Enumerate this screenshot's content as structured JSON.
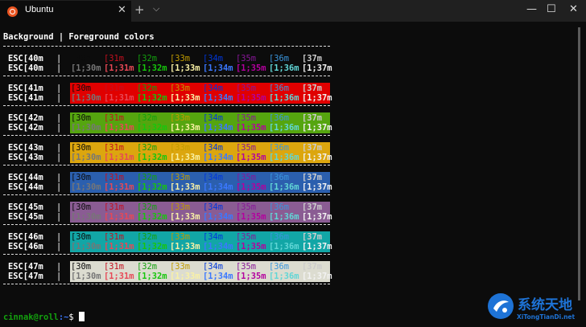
{
  "window": {
    "tab_title": "Ubuntu",
    "tab_close": "✕",
    "new_tab": "+",
    "dropdown": "⌵",
    "minimize": "—",
    "maximize": "☐",
    "close": "✕",
    "accent_color": "#e95420"
  },
  "terminal": {
    "header": "Background | Foreground colors",
    "row_divider": "|",
    "fg_codes": [
      "[30m",
      "[31m",
      "[32m",
      "[33m",
      "[34m",
      "[35m",
      "[36m",
      "[37m"
    ],
    "fg_bold_codes": [
      "[1;30m",
      "[1;31m",
      "[1;32m",
      "[1;33m",
      "[1;34m",
      "[1;35m",
      "[1;36m",
      "[1;37m"
    ],
    "fg_colors": [
      "#0c0c0c",
      "#c50f1f",
      "#13a10e",
      "#c19c00",
      "#0037da",
      "#881798",
      "#3a96dd",
      "#cccccc"
    ],
    "fg_bold_colors": [
      "#767676",
      "#e74856",
      "#16c60c",
      "#f9f1a5",
      "#3b78ff",
      "#b4009e",
      "#61d6d6",
      "#f2f2f2"
    ],
    "blocks": [
      {
        "label1": "ESC[40m",
        "label2": "ESC[40m",
        "bg": "#0c0c0c"
      },
      {
        "label1": "ESC[41m",
        "label2": "ESC[41m",
        "bg": "#e00000"
      },
      {
        "label1": "ESC[42m",
        "label2": "ESC[42m",
        "bg": "#55a50f"
      },
      {
        "label1": "ESC[43m",
        "label2": "ESC[43m",
        "bg": "#dca60e"
      },
      {
        "label1": "ESC[44m",
        "label2": "ESC[44m",
        "bg": "#2b5fae"
      },
      {
        "label1": "ESC[45m",
        "label2": "ESC[45m",
        "bg": "#8a5c93"
      },
      {
        "label1": "ESC[46m",
        "label2": "ESC[46m",
        "bg": "#12a6a6"
      },
      {
        "label1": "ESC[47m",
        "label2": "ESC[47m",
        "bg": "#dcdcd0"
      }
    ]
  },
  "prompt": {
    "user_host": "cinnak@roll",
    "path": ":~",
    "symbol": "$"
  },
  "watermark": {
    "title": "系统天地",
    "url": "XiTongTianDi.net"
  }
}
